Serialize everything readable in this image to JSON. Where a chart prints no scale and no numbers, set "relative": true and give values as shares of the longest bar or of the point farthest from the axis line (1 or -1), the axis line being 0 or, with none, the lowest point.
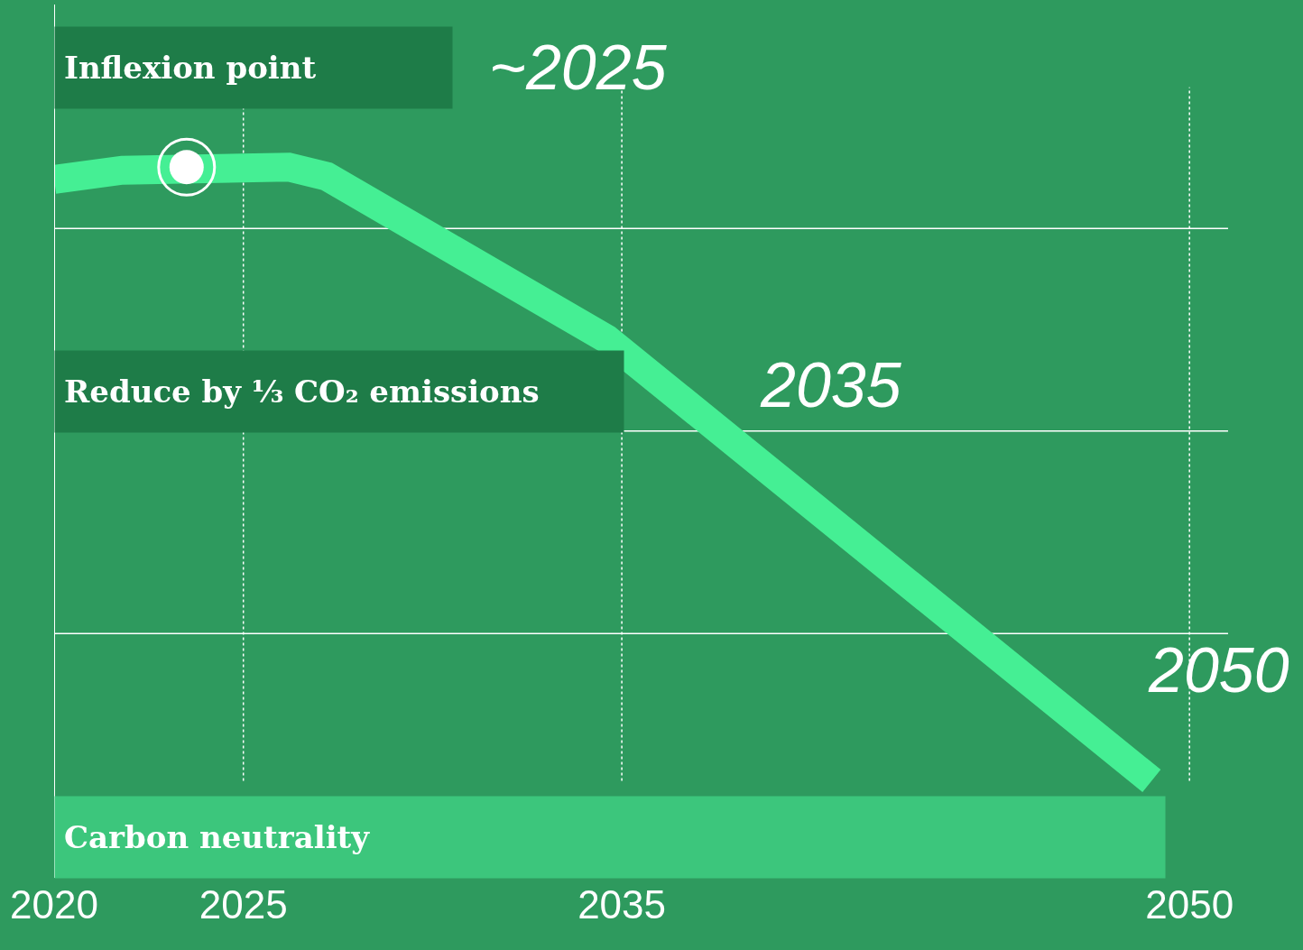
{
  "chart_data": {
    "type": "line",
    "relative": true,
    "x": [
      2020,
      2021.8,
      2026.2,
      2027.2,
      2034.6,
      2049
    ],
    "series": [
      {
        "color": "#45ef94",
        "values": [
          0.98,
          0.995,
          1.0,
          0.985,
          0.72,
          0
        ]
      },
      {
        "type": "scatter",
        "color": "#ffffff",
        "x": [
          2023.5
        ],
        "values": [
          1.0
        ]
      }
    ],
    "xlim": [
      2020,
      2053
    ],
    "xticks": [
      2020,
      2025,
      2035,
      2050
    ],
    "ref_lines": [
      {
        "axis": "y",
        "value": 0.9,
        "color": "#ffffff",
        "line_style": "solid"
      },
      {
        "axis": "y",
        "value": 0.57,
        "color": "#ffffff",
        "line_style": "solid"
      },
      {
        "axis": "y",
        "value": 0.24,
        "color": "#ffffff",
        "line_style": "solid"
      },
      {
        "axis": "x",
        "value": 2025,
        "color": "#ffffff",
        "line_style": "dotted"
      },
      {
        "axis": "x",
        "value": 2035,
        "color": "#ffffff",
        "line_style": "dotted"
      },
      {
        "axis": "x",
        "value": 2050,
        "color": "#ffffff",
        "line_style": "dotted"
      }
    ],
    "annotations": [
      "Inflexion point",
      "~2025",
      "Reduce by ⅓ CO₂ emissions",
      "2035",
      "Carbon neutrality",
      "2050"
    ]
  }
}
